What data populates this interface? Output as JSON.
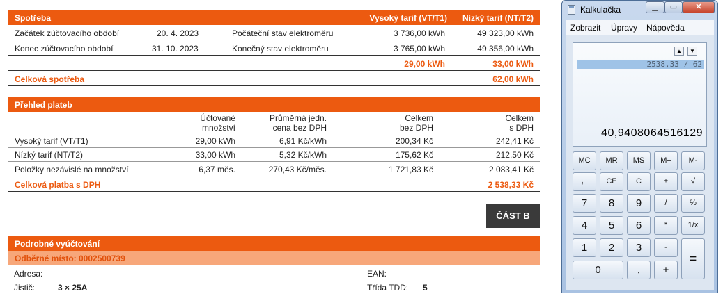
{
  "consumption": {
    "title": "Spotřeba",
    "col_vt": "Vysoký tarif (VT/T1)",
    "col_nt": "Nízký tarif (NT/T2)",
    "rows": [
      {
        "label": "Začátek zúčtovacího období",
        "date": "20. 4. 2023",
        "desc": "Počáteční stav elektroměru",
        "vt": "3 736,00 kWh",
        "nt": "49 323,00 kWh"
      },
      {
        "label": "Konec zúčtovacího období",
        "date": "31. 10. 2023",
        "desc": "Konečný stav elektroměru",
        "vt": "3 765,00 kWh",
        "nt": "49 356,00 kWh"
      }
    ],
    "diff_vt": "29,00 kWh",
    "diff_nt": "33,00 kWh",
    "total_label": "Celková spotřeba",
    "total_value": "62,00 kWh"
  },
  "payments": {
    "title": "Přehled plateb",
    "h_qty_1": "Účtované",
    "h_qty_2": "množství",
    "h_unit_1": "Průměrná jedn.",
    "h_unit_2": "cena bez DPH",
    "h_net_1": "Celkem",
    "h_net_2": "bez DPH",
    "h_gross_1": "Celkem",
    "h_gross_2": "s DPH",
    "rows": [
      {
        "label": "Vysoký tarif (VT/T1)",
        "qty": "29,00 kWh",
        "unit": "6,91 Kč/kWh",
        "net": "200,34 Kč",
        "gross": "242,41 Kč"
      },
      {
        "label": "Nízký tarif (NT/T2)",
        "qty": "33,00 kWh",
        "unit": "5,32 Kč/kWh",
        "net": "175,62 Kč",
        "gross": "212,50 Kč"
      },
      {
        "label": "Položky nezávislé na množství",
        "qty": "6,37 měs.",
        "unit": "270,43 Kč/měs.",
        "net": "1 721,83 Kč",
        "gross": "2 083,41 Kč"
      }
    ],
    "total_label": "Celková platba s DPH",
    "total_value": "2 538,33 Kč"
  },
  "part_b_label": "ČÁST B",
  "detail": {
    "title": "Podrobné vyúčtování",
    "place": "Odběrné místo: 0002500739",
    "address_label": "Adresa:",
    "ean_label": "EAN:",
    "breaker_label": "Jistič:",
    "breaker_value": "3 × 25A",
    "tdd_label": "Třída TDD:",
    "tdd_value": "5"
  },
  "calculator": {
    "title": "Kalkulačka",
    "menu": [
      "Zobrazit",
      "Úpravy",
      "Nápověda"
    ],
    "history": "2538,33 / 62",
    "value": "40,9408064516129",
    "keys": {
      "mc": "MC",
      "mr": "MR",
      "ms": "MS",
      "mplus": "M+",
      "mminus": "M-",
      "back": "←",
      "ce": "CE",
      "c": "C",
      "neg": "±",
      "sqrt": "√",
      "k7": "7",
      "k8": "8",
      "k9": "9",
      "div": "/",
      "pct": "%",
      "k4": "4",
      "k5": "5",
      "k6": "6",
      "mul": "*",
      "inv": "1/x",
      "k1": "1",
      "k2": "2",
      "k3": "3",
      "sub": "-",
      "eq": "=",
      "k0": "0",
      "dot": ",",
      "add": "+"
    }
  }
}
